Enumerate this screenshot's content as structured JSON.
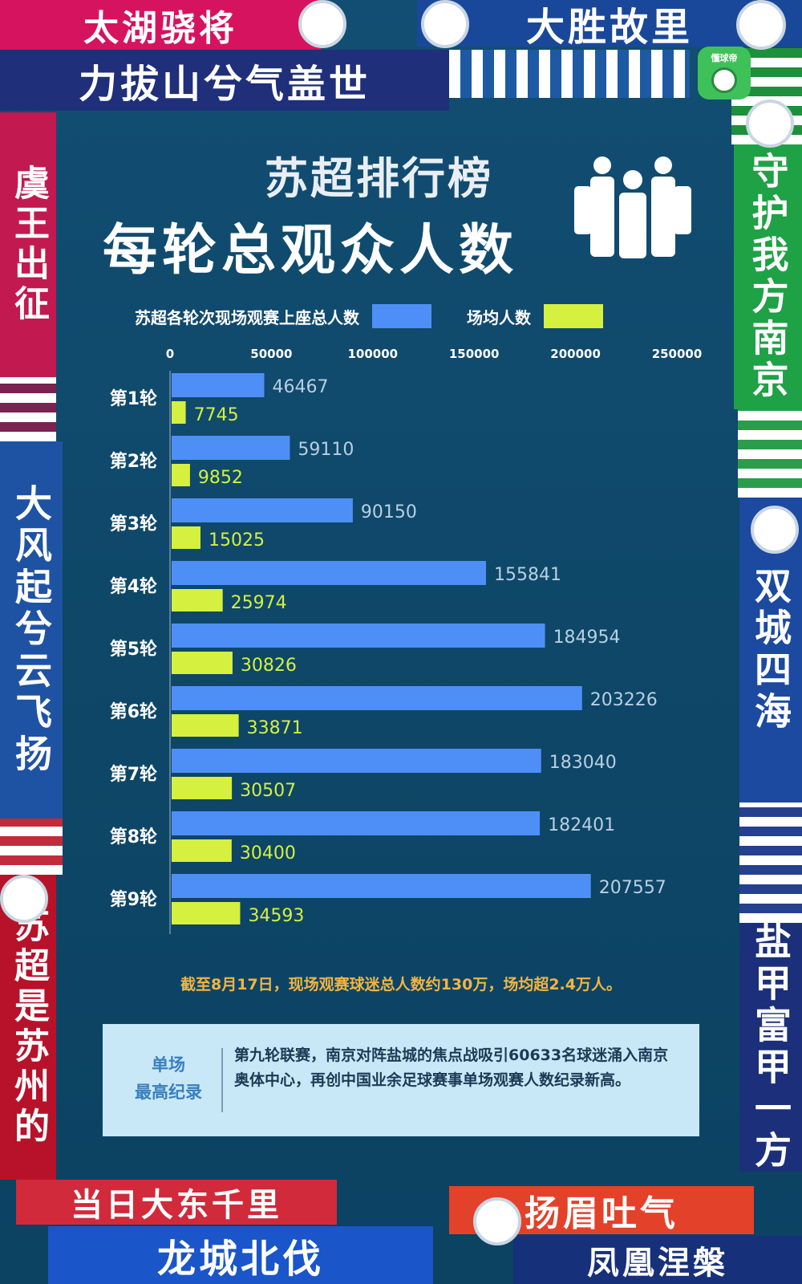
{
  "app": {
    "logo_text": "懂球帝"
  },
  "scarves": {
    "top1": "太湖骁将",
    "top2": "大胜故里",
    "top3": "力拔山兮气盖世",
    "left1": "虞王出征",
    "left2": "大风起兮云飞扬",
    "left3": "苏超是苏州的",
    "right1": "守护我方南京",
    "right2": "双城四海",
    "right3": "盐甲富甲一方",
    "bottom1": "当日大东千里",
    "bottom2": "扬眉吐气",
    "bottom3": "龙城北伐",
    "bottom4": "凤凰涅槃"
  },
  "chart_data": {
    "type": "bar",
    "orientation": "horizontal",
    "title": "苏超排行榜",
    "subtitle": "每轮总观众人数",
    "categories": [
      "第1轮",
      "第2轮",
      "第3轮",
      "第4轮",
      "第5轮",
      "第6轮",
      "第7轮",
      "第8轮",
      "第9轮"
    ],
    "series": [
      {
        "name": "苏超各轮次现场观赛上座总人数",
        "color": "#4e8ff7",
        "values": [
          46467,
          59110,
          90150,
          155841,
          184954,
          203226,
          183040,
          182401,
          207557
        ]
      },
      {
        "name": "场均人数",
        "color": "#d5f03f",
        "values": [
          7745,
          9852,
          15025,
          25974,
          30826,
          33871,
          30507,
          30400,
          34593
        ]
      }
    ],
    "xlim": [
      0,
      250000
    ],
    "xticks": [
      0,
      50000,
      100000,
      150000,
      200000,
      250000
    ],
    "legend_position": "top",
    "grid": false
  },
  "footnote": "截至8月17日，现场观赛球迷总人数约130万，场均超2.4万人。",
  "record": {
    "label_line1": "单场",
    "label_line2": "最高纪录",
    "text": "第九轮联赛，南京对阵盐城的焦点战吸引60633名球迷涌入南京奥体中心，再创中国业余足球赛事单场观赛人数纪录新高。"
  }
}
